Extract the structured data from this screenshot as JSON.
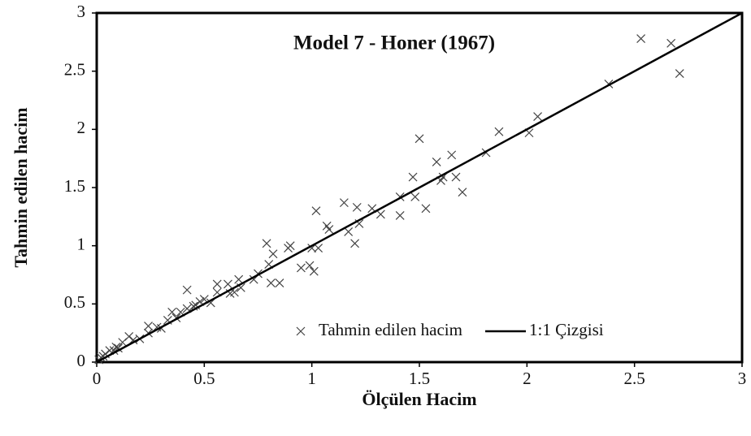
{
  "chart_data": {
    "type": "scatter",
    "title": "Model 7 - Honer (1967)",
    "xlabel": "Ölçülen Hacim",
    "ylabel": "Tahmin edilen hacim",
    "xlim": [
      0,
      3
    ],
    "ylim": [
      0,
      3
    ],
    "xticks": [
      0,
      0.5,
      1,
      1.5,
      2,
      2.5,
      3
    ],
    "yticks": [
      0,
      0.5,
      1,
      1.5,
      2,
      2.5,
      3
    ],
    "grid": false,
    "legend": "lower right",
    "series": [
      {
        "name": "Tahmin edilen hacim",
        "type": "scatter",
        "marker": "x",
        "color": "#444444",
        "x": [
          2.53,
          2.67,
          2.71,
          2.38,
          2.05,
          2.01,
          1.87,
          1.81,
          1.65,
          1.58,
          1.5,
          1.47,
          1.67,
          1.61,
          1.6,
          1.7,
          1.48,
          1.41,
          1.53,
          1.41,
          1.15,
          1.21,
          1.28,
          1.32,
          1.22,
          1.17,
          1.2,
          1.02,
          1.07,
          1.08,
          1.03,
          1.0,
          0.99,
          1.01,
          0.95,
          0.9,
          0.89,
          0.79,
          0.82,
          0.8,
          0.85,
          0.81,
          0.75,
          0.73,
          0.66,
          0.67,
          0.64,
          0.62,
          0.61,
          0.56,
          0.56,
          0.42,
          0.5,
          0.48,
          0.45,
          0.42,
          0.39,
          0.35,
          0.33,
          0.37,
          0.3,
          0.24,
          0.24,
          0.15,
          0.12,
          0.09,
          0.06,
          0.04,
          0.02,
          0.01,
          0.46,
          0.53,
          0.28,
          0.2,
          0.17,
          0.1,
          0.08,
          0.03
        ],
        "values": [
          2.78,
          2.74,
          2.48,
          2.39,
          2.11,
          1.97,
          1.98,
          1.8,
          1.78,
          1.72,
          1.92,
          1.59,
          1.59,
          1.59,
          1.56,
          1.46,
          1.42,
          1.42,
          1.32,
          1.26,
          1.37,
          1.33,
          1.32,
          1.27,
          1.19,
          1.12,
          1.02,
          1.3,
          1.17,
          1.14,
          0.98,
          0.98,
          0.83,
          0.78,
          0.81,
          1.0,
          0.98,
          1.02,
          0.93,
          0.84,
          0.68,
          0.68,
          0.76,
          0.71,
          0.71,
          0.64,
          0.6,
          0.59,
          0.67,
          0.67,
          0.6,
          0.62,
          0.54,
          0.52,
          0.48,
          0.46,
          0.43,
          0.43,
          0.36,
          0.38,
          0.29,
          0.31,
          0.25,
          0.22,
          0.17,
          0.13,
          0.1,
          0.07,
          0.04,
          0.02,
          0.49,
          0.51,
          0.3,
          0.2,
          0.19,
          0.12,
          0.1,
          0.05
        ]
      },
      {
        "name": "1:1 Çizgisi",
        "type": "line",
        "color": "#000000",
        "x": [
          0,
          3
        ],
        "values": [
          0,
          3
        ]
      }
    ]
  }
}
